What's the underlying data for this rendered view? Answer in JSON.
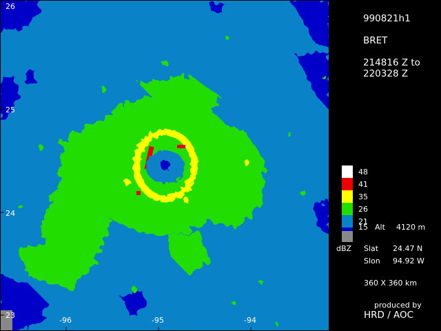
{
  "header": {
    "flight_id": "990821h1",
    "storm": "BRET",
    "time_line1": "214816 Z to",
    "time_line2": "220328 Z"
  },
  "legend": {
    "levels": [
      {
        "value": "48",
        "color": "#ffffff"
      },
      {
        "value": "41",
        "color": "#ee0000"
      },
      {
        "value": "35",
        "color": "#ffff00"
      },
      {
        "value": "26",
        "color": "#22dd00"
      },
      {
        "value": "21",
        "color": "#0a82c8"
      },
      {
        "value": "15",
        "color": "#0000c8"
      },
      {
        "value": "",
        "color": "#888888"
      }
    ],
    "unit": "dBZ",
    "altitude_label": "Alt",
    "altitude_value": "4120 m"
  },
  "center": {
    "slat_label": "Slat",
    "slat_value": "24.47 N",
    "slon_label": "Slon",
    "slon_value": "94.92 W"
  },
  "domain_size": "360 X 360 km",
  "credit": {
    "line1": "produced by",
    "line2": "HRD / AOC"
  },
  "map": {
    "lat_labels": [
      "26",
      "25",
      "24",
      "23"
    ],
    "lon_labels": [
      "-96",
      "-95",
      "-94"
    ]
  }
}
